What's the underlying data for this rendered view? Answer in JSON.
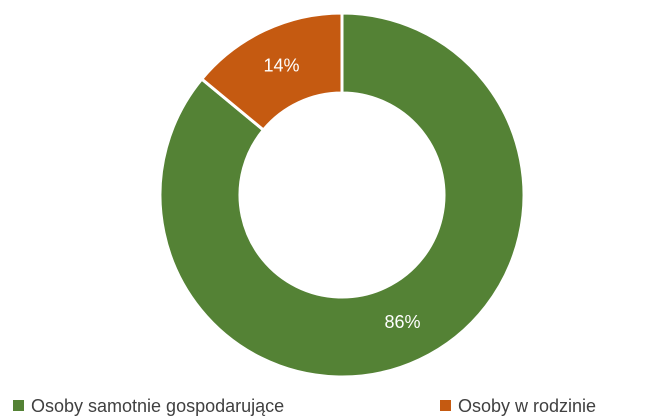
{
  "chart_data": {
    "type": "donut",
    "categories": [
      "Osoby samotnie gospodarujące",
      "Osoby w rodzinie"
    ],
    "values": [
      86,
      14
    ],
    "value_labels": [
      "86%",
      "14%"
    ],
    "colors": [
      "#548235",
      "#c55a11"
    ],
    "legend": "bottom"
  }
}
